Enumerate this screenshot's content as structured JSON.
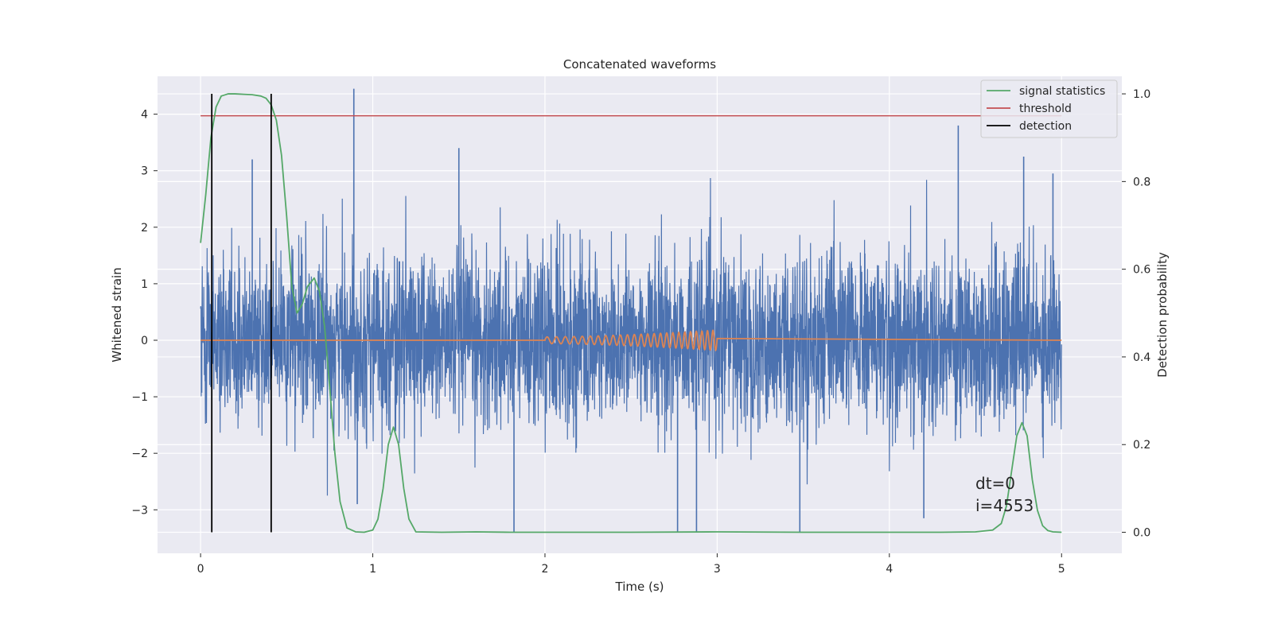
{
  "chart_data": {
    "type": "line",
    "title": "Concatenated waveforms",
    "xlabel": "Time (s)",
    "ylabel": "Whitened strain",
    "ylabel_right": "Detection probability",
    "xlim": [
      -0.25,
      5.35
    ],
    "ylim": [
      -3.77,
      4.67
    ],
    "ylim_right": [
      -0.048,
      1.04
    ],
    "xticks": [
      0,
      1,
      2,
      3,
      4,
      5
    ],
    "yticks": [
      -3,
      -2,
      -1,
      0,
      1,
      2,
      3,
      4
    ],
    "yticks_right": [
      0.0,
      0.2,
      0.4,
      0.6,
      0.8,
      1.0
    ],
    "xtick_labels": [
      "0",
      "1",
      "2",
      "3",
      "4",
      "5"
    ],
    "ytick_labels": [
      "−3",
      "−2",
      "−1",
      "0",
      "1",
      "2",
      "3",
      "4"
    ],
    "ytick_right_labels": [
      "0.0",
      "0.2",
      "0.4",
      "0.6",
      "0.8",
      "1.0"
    ],
    "grid": true,
    "legend_position": "top-right",
    "legend": [
      "signal statistics",
      "threshold",
      "detection"
    ],
    "colors": {
      "strain": "#4c72b0",
      "injection": "#dd8452",
      "signal_statistics": "#55a868",
      "threshold": "#c44e52",
      "detection": "#000000",
      "background": "#eaeaf2",
      "grid": "#ffffff"
    },
    "series": [
      {
        "name": "signal statistics",
        "axis": "right",
        "x": [
          0.0,
          0.03,
          0.06,
          0.09,
          0.12,
          0.16,
          0.2,
          0.25,
          0.3,
          0.35,
          0.38,
          0.41,
          0.44,
          0.47,
          0.5,
          0.53,
          0.56,
          0.59,
          0.62,
          0.66,
          0.69,
          0.72,
          0.75,
          0.78,
          0.81,
          0.85,
          0.9,
          0.95,
          1.0,
          1.03,
          1.06,
          1.09,
          1.12,
          1.15,
          1.18,
          1.21,
          1.25,
          1.4,
          1.6,
          1.8,
          2.0,
          2.5,
          3.0,
          3.5,
          4.0,
          4.3,
          4.5,
          4.6,
          4.65,
          4.68,
          4.71,
          4.74,
          4.77,
          4.8,
          4.83,
          4.86,
          4.89,
          4.92,
          4.95,
          5.0
        ],
        "y": [
          0.66,
          0.77,
          0.9,
          0.97,
          0.995,
          1.0,
          1.0,
          0.999,
          0.998,
          0.995,
          0.99,
          0.975,
          0.94,
          0.86,
          0.72,
          0.56,
          0.5,
          0.52,
          0.56,
          0.58,
          0.55,
          0.47,
          0.33,
          0.18,
          0.07,
          0.01,
          0.001,
          0.0,
          0.005,
          0.03,
          0.1,
          0.2,
          0.24,
          0.2,
          0.1,
          0.03,
          0.001,
          0.0,
          0.001,
          0.0,
          0.0,
          0.0,
          0.001,
          0.0,
          0.0,
          0.0,
          0.001,
          0.005,
          0.02,
          0.06,
          0.14,
          0.22,
          0.25,
          0.22,
          0.12,
          0.05,
          0.015,
          0.004,
          0.001,
          0.0
        ]
      },
      {
        "name": "threshold",
        "axis": "right",
        "x": [
          0.0,
          5.0
        ],
        "y": [
          0.95,
          0.95
        ]
      },
      {
        "name": "detection",
        "axis": "right",
        "x": [
          0.065,
          0.41
        ],
        "y": [
          0.0,
          1.0
        ]
      }
    ],
    "strain": {
      "axis": "left",
      "x_range": [
        0.0,
        5.0
      ],
      "samples": 4096,
      "approx_std": 0.75,
      "notable_peaks": [
        {
          "x": 0.89,
          "y": 4.45
        },
        {
          "x": 0.3,
          "y": 3.2
        },
        {
          "x": 1.5,
          "y": 3.4
        },
        {
          "x": 4.4,
          "y": 3.8
        },
        {
          "x": 4.78,
          "y": 3.25
        },
        {
          "x": 4.95,
          "y": 2.95
        },
        {
          "x": 1.82,
          "y": -3.4
        },
        {
          "x": 2.77,
          "y": -3.4
        },
        {
          "x": 2.88,
          "y": -3.4
        },
        {
          "x": 3.48,
          "y": -3.4
        },
        {
          "x": 4.2,
          "y": -3.15
        },
        {
          "x": 0.91,
          "y": -2.9
        }
      ]
    },
    "injection": {
      "axis": "left",
      "x_range": [
        2.0,
        3.0
      ],
      "amplitude_start": 0.06,
      "amplitude_end": 0.18,
      "frequency_start_hz": 18,
      "frequency_end_hz": 32
    },
    "annotations": [
      "dt=0",
      "i=4553"
    ]
  }
}
